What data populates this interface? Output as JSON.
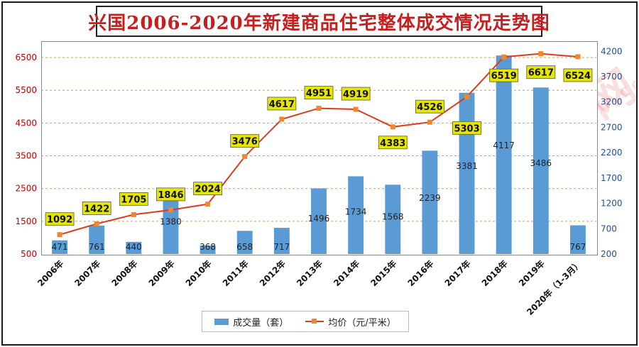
{
  "title": "兴国2006-2020年新建商品住宅整体成交情况走势图",
  "watermark": {
    "big": "兴国房产网",
    "small": "WWW.XINGFCW.COM"
  },
  "legend": {
    "bar_label": "成交量（套）",
    "line_label": "均价（元/平米）"
  },
  "colors": {
    "bar": "#5b9bd5",
    "line": "#e03a1a",
    "marker": "#f0862e",
    "price_label_bg": "#e6e600",
    "left_axis_text": "#c00000",
    "right_axis_text": "#1f4e9a",
    "title": "#c81e1e"
  },
  "chart_data": {
    "type": "bar+line",
    "title": "兴国2006-2020年新建商品住宅整体成交情况走势图",
    "categories": [
      "2006年",
      "2007年",
      "2008年",
      "2009年",
      "2010年",
      "2011年",
      "2012年",
      "2013年",
      "2014年",
      "2015年",
      "2016年",
      "2017年",
      "2018年",
      "2019年",
      "2020年（1-3月）"
    ],
    "series": [
      {
        "name": "成交量（套）",
        "type": "bar",
        "axis": "right",
        "values": [
          471,
          761,
          440,
          1380,
          368,
          658,
          717,
          1496,
          1734,
          1568,
          2239,
          3381,
          4117,
          3486,
          767
        ]
      },
      {
        "name": "均价（元/平米）",
        "type": "line",
        "axis": "left",
        "values": [
          1092,
          1422,
          1705,
          1846,
          2024,
          3476,
          4617,
          4951,
          4919,
          4383,
          4526,
          5303,
          6519,
          6617,
          6524
        ]
      }
    ],
    "left_axis": {
      "ticks": [
        500,
        1500,
        2500,
        3500,
        4500,
        5500,
        6500
      ],
      "ylim": [
        500,
        7000
      ]
    },
    "right_axis": {
      "ticks": [
        200,
        700,
        1200,
        1700,
        2200,
        2700,
        3200,
        3700,
        4200
      ],
      "ylim": [
        200,
        4400
      ]
    },
    "grid": true,
    "legend_position": "bottom"
  }
}
